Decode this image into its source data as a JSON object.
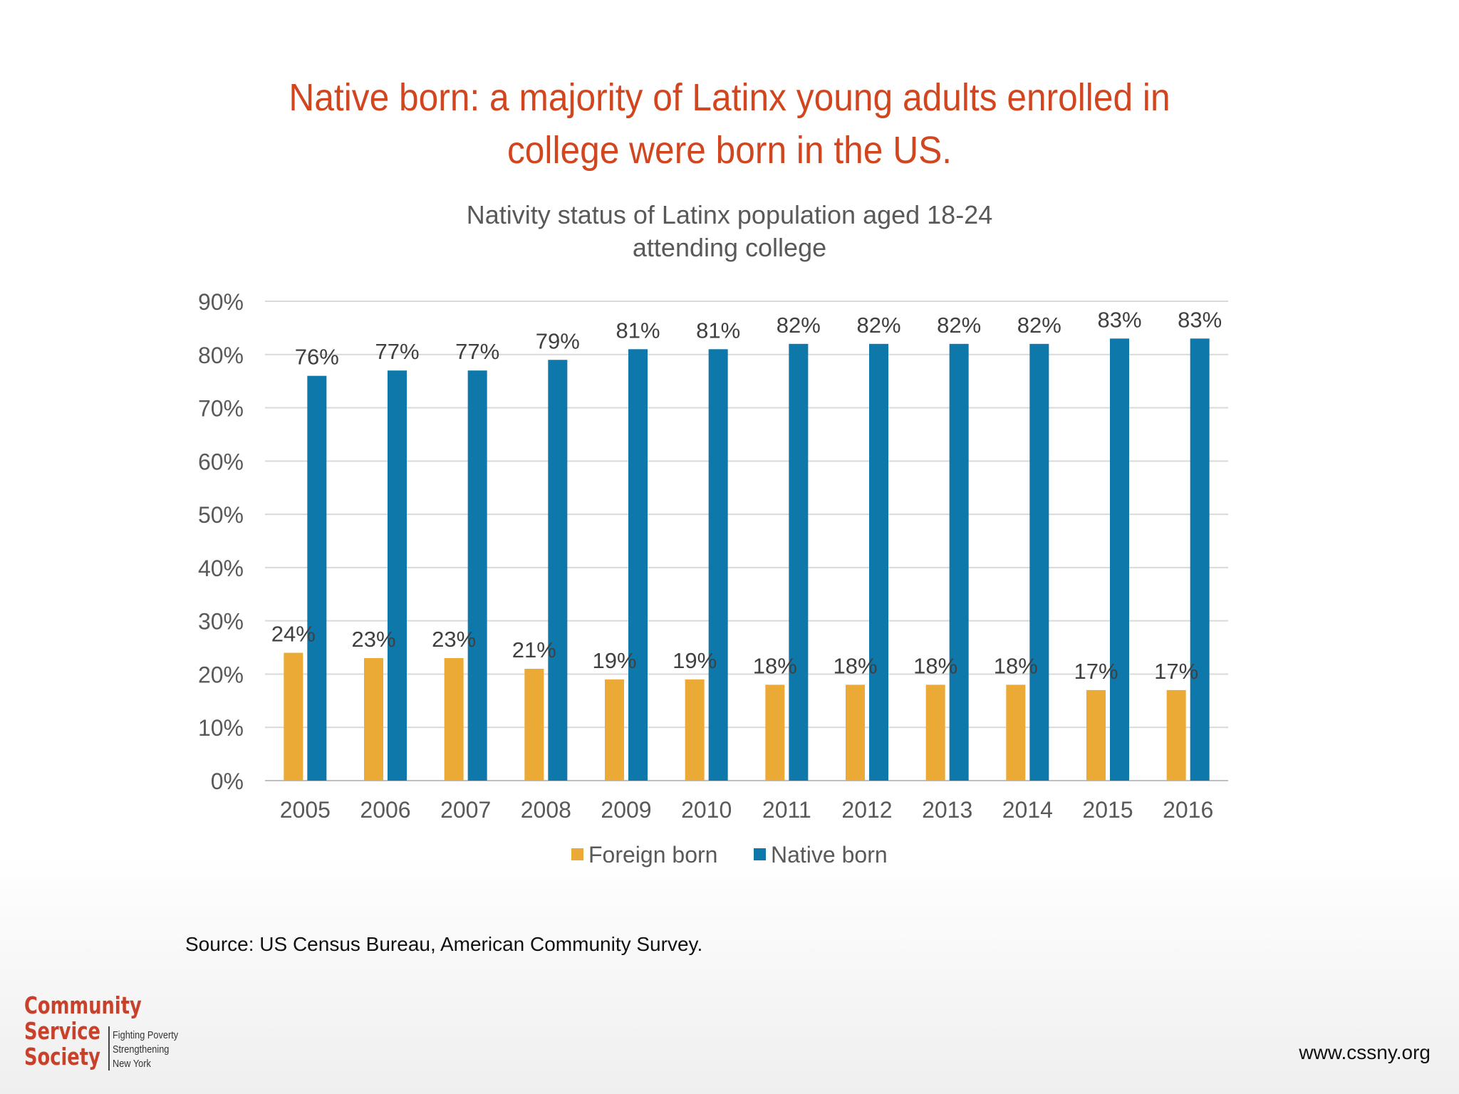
{
  "slide": {
    "title_line1": "Native born: a majority of Latinx young adults enrolled in",
    "title_line2": "college were born in the US.",
    "source": "Source: US Census Bureau, American Community Survey.",
    "url": "www.cssny.org"
  },
  "logo": {
    "word1": "Community",
    "word2": "Service",
    "word3": "Society",
    "tagline1": "Fighting Poverty",
    "tagline2": "Strengthening",
    "tagline3": "New York"
  },
  "colors": {
    "title": "#d2461f",
    "foreign_born": "#ebaa35",
    "native_born": "#0e78aa",
    "grid": "#d9d9d9",
    "axis_text": "#595959",
    "label_text": "#404040"
  },
  "chart_data": {
    "type": "bar",
    "title_line1": "Nativity status of Latinx population aged 18-24",
    "title_line2": "attending college",
    "categories": [
      "2005",
      "2006",
      "2007",
      "2008",
      "2009",
      "2010",
      "2011",
      "2012",
      "2013",
      "2014",
      "2015",
      "2016"
    ],
    "series": [
      {
        "name": "Foreign born",
        "color": "#ebaa35",
        "values": [
          24,
          23,
          23,
          21,
          19,
          19,
          18,
          18,
          18,
          18,
          17,
          17
        ],
        "labels": [
          "24%",
          "23%",
          "23%",
          "21%",
          "19%",
          "19%",
          "18%",
          "18%",
          "18%",
          "18%",
          "17%",
          "17%"
        ]
      },
      {
        "name": "Native born",
        "color": "#0e78aa",
        "values": [
          76,
          77,
          77,
          79,
          81,
          81,
          82,
          82,
          82,
          82,
          83,
          83
        ],
        "labels": [
          "76%",
          "77%",
          "77%",
          "79%",
          "81%",
          "81%",
          "82%",
          "82%",
          "82%",
          "82%",
          "83%",
          "83%"
        ]
      }
    ],
    "y_ticks": [
      "0%",
      "10%",
      "20%",
      "30%",
      "40%",
      "50%",
      "60%",
      "70%",
      "80%",
      "90%"
    ],
    "ylim": [
      0,
      90
    ],
    "grid": true,
    "legend_position": "bottom"
  }
}
